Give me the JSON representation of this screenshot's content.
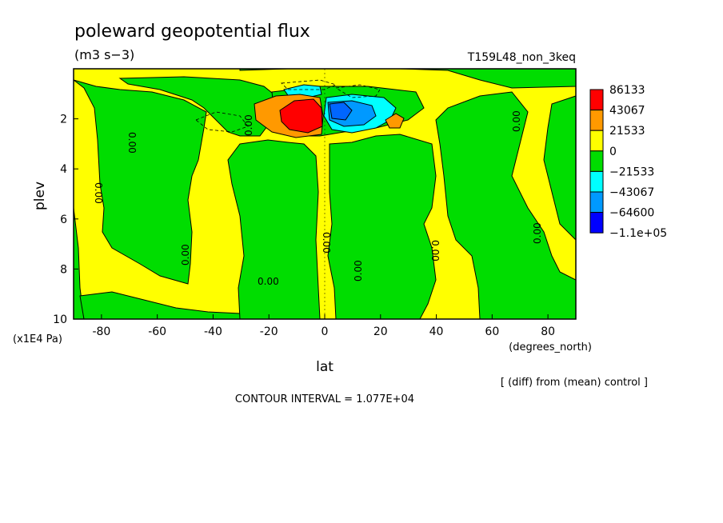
{
  "chart_data": {
    "type": "heatmap",
    "title": "poleward geopotential flux",
    "units": "(m3 s−3)",
    "experiment": "T159L48_non_3keq",
    "xlabel": "lat",
    "xunits": "(degrees_north)",
    "ylabel": "plev",
    "yunits": "(x1E4 Pa)",
    "xlim": [
      -90,
      90
    ],
    "ylim": [
      10,
      0
    ],
    "x_ticks": [
      "-80",
      "-60",
      "-40",
      "-20",
      "0",
      "20",
      "40",
      "60",
      "80"
    ],
    "y_ticks": [
      "2",
      "4",
      "6",
      "8",
      "10"
    ],
    "contour_interval_text": "CONTOUR INTERVAL = 1.077E+04",
    "diff_note": "[ (diff) from (mean) control ]",
    "colorbar": {
      "labels": [
        "86133",
        "43067",
        "21533",
        "0",
        "−21533",
        "−43067",
        "−64600",
        "−1.1e+05"
      ],
      "colors": [
        "#ff0000",
        "#ff9900",
        "#ffff00",
        "#00dd00",
        "#00ffff",
        "#0099ff",
        "#0000ff",
        "#000000"
      ]
    },
    "zero_contour_labels": [
      "0.00",
      "0.00",
      "0.00",
      "0.00",
      "0.00",
      "0.00",
      "0.00",
      "0.00",
      "0.00",
      "0.00"
    ],
    "features": [
      {
        "name": "red-max",
        "lat_range": [
          -15,
          -2
        ],
        "plev_range": [
          1.3,
          2.4
        ],
        "sign": "positive"
      },
      {
        "name": "blue-min",
        "lat_range": [
          2,
          14
        ],
        "plev_range": [
          1.3,
          2.4
        ],
        "sign": "negative"
      }
    ]
  }
}
